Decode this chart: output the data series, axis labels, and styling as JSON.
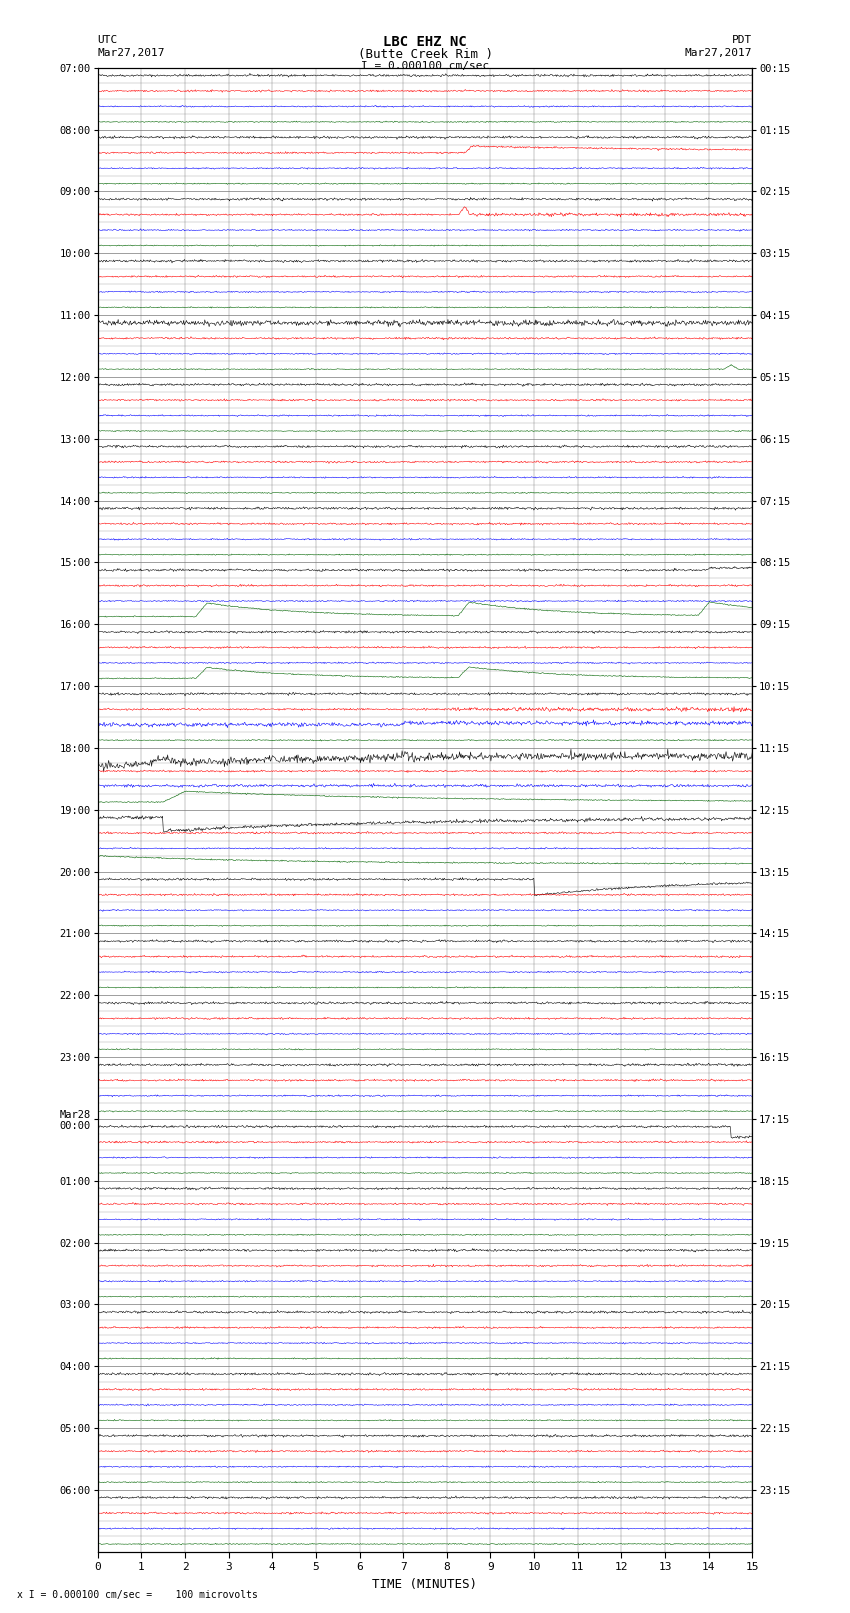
{
  "title_line1": "LBC EHZ NC",
  "title_line2": "(Butte Creek Rim )",
  "scale_text": "I = 0.000100 cm/sec",
  "left_header_line1": "UTC",
  "left_header_line2": "Mar27,2017",
  "right_header_line1": "PDT",
  "right_header_line2": "Mar27,2017",
  "xlabel": "TIME (MINUTES)",
  "footer_text": "x I = 0.000100 cm/sec =    100 microvolts",
  "utc_labels": [
    "07:00",
    "08:00",
    "09:00",
    "10:00",
    "11:00",
    "12:00",
    "13:00",
    "14:00",
    "15:00",
    "16:00",
    "17:00",
    "18:00",
    "19:00",
    "20:00",
    "21:00",
    "22:00",
    "23:00",
    "Mar28\n00:00",
    "01:00",
    "02:00",
    "03:00",
    "04:00",
    "05:00",
    "06:00"
  ],
  "pdt_labels": [
    "00:15",
    "01:15",
    "02:15",
    "03:15",
    "04:15",
    "05:15",
    "06:15",
    "07:15",
    "08:15",
    "09:15",
    "10:15",
    "11:15",
    "12:15",
    "13:15",
    "14:15",
    "15:15",
    "16:15",
    "17:15",
    "18:15",
    "19:15",
    "20:15",
    "21:15",
    "22:15",
    "23:15"
  ],
  "n_hours": 24,
  "background_color": "#ffffff",
  "grid_color": "#777777",
  "trace_colors": [
    "black",
    "red",
    "blue",
    "#006400"
  ],
  "seed": 42
}
